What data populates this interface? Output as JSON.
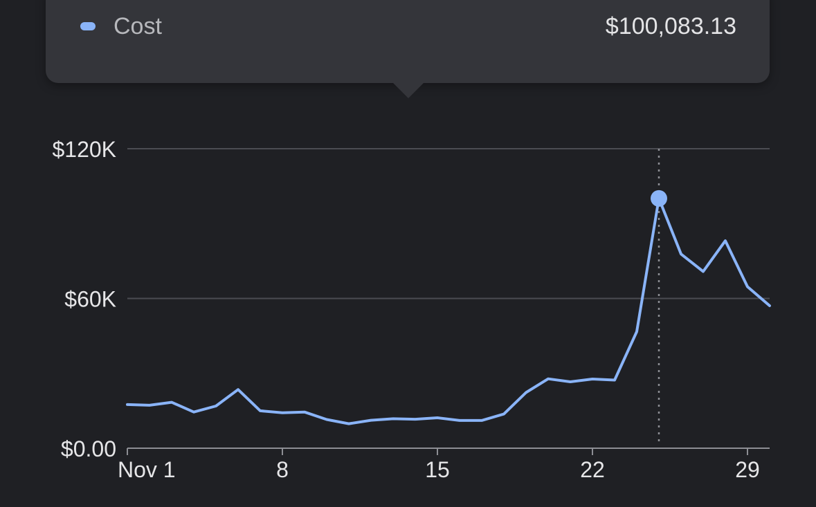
{
  "tooltip": {
    "series_name": "Cost",
    "value": "$100,083.13",
    "swatch_color": "#8ab4f8"
  },
  "chart_data": {
    "type": "line",
    "title": "",
    "xlabel": "",
    "ylabel": "",
    "x_tick_labels": [
      "Nov 1",
      "8",
      "15",
      "22",
      "29"
    ],
    "x_tick_days": [
      1,
      8,
      15,
      22,
      29
    ],
    "y_tick_labels": [
      "$0.00",
      "$60K",
      "$120K"
    ],
    "y_tick_values": [
      0,
      60000,
      120000
    ],
    "xlim": [
      1,
      30
    ],
    "ylim": [
      0,
      120000
    ],
    "grid": true,
    "series": [
      {
        "color": "#8ab4f8",
        "x": [
          1,
          2,
          3,
          4,
          5,
          6,
          7,
          8,
          9,
          10,
          11,
          12,
          13,
          14,
          15,
          16,
          17,
          18,
          19,
          20,
          21,
          22,
          23,
          24,
          25,
          26,
          27,
          28,
          29,
          30
        ],
        "values": [
          17500,
          17200,
          18400,
          14500,
          16900,
          23500,
          15000,
          14200,
          14500,
          11500,
          9800,
          11200,
          11800,
          11600,
          12200,
          11100,
          11100,
          13700,
          22300,
          27800,
          26600,
          27700,
          27300,
          46700,
          100083.13,
          77800,
          70800,
          83100,
          64700,
          57100
        ]
      }
    ],
    "highlight": {
      "x": 25,
      "value": 100083.13
    }
  }
}
